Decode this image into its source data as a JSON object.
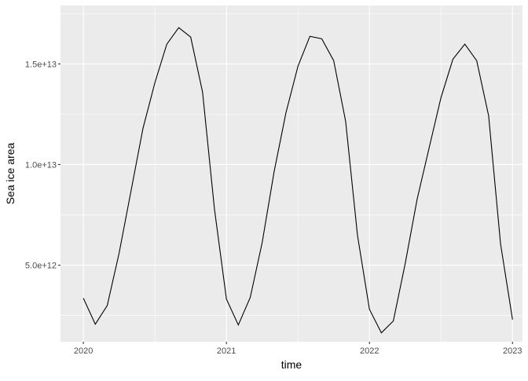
{
  "chart_data": {
    "type": "line",
    "title": "",
    "xlabel": "time",
    "ylabel": "Sea ice area",
    "x_ticks": [
      "2020",
      "2021",
      "2022",
      "2023"
    ],
    "y_ticks": [
      {
        "value": 5000000000000.0,
        "label": "5.0e+12"
      },
      {
        "value": 10000000000000.0,
        "label": "1.0e+13"
      },
      {
        "value": 15000000000000.0,
        "label": "1.5e+13"
      }
    ],
    "xlim": [
      2019.84,
      2023.07
    ],
    "ylim": [
      1200000000000.0,
      17900000000000.0
    ],
    "grid": true,
    "panel_background": "#EBEBEB",
    "line_color": "#000000",
    "x": [
      "2020-01",
      "2020-02",
      "2020-03",
      "2020-04",
      "2020-05",
      "2020-06",
      "2020-07",
      "2020-08",
      "2020-09",
      "2020-10",
      "2020-11",
      "2020-12",
      "2021-01",
      "2021-02",
      "2021-03",
      "2021-04",
      "2021-05",
      "2021-06",
      "2021-07",
      "2021-08",
      "2021-09",
      "2021-10",
      "2021-11",
      "2021-12",
      "2022-01",
      "2022-02",
      "2022-03",
      "2022-04",
      "2022-05",
      "2022-06",
      "2022-07",
      "2022-08",
      "2022-09",
      "2022-10",
      "2022-11",
      "2022-12",
      "2023-01"
    ],
    "values": [
      3360000000000.0,
      2070000000000.0,
      3000000000000.0,
      5600000000000.0,
      8700000000000.0,
      11800000000000.0,
      14060000000000.0,
      15980000000000.0,
      16800000000000.0,
      16330000000000.0,
      13600000000000.0,
      7770000000000.0,
      3320000000000.0,
      2030000000000.0,
      3400000000000.0,
      6130000000000.0,
      9650000000000.0,
      12580000000000.0,
      14880000000000.0,
      16370000000000.0,
      16250000000000.0,
      15160000000000.0,
      12150000000000.0,
      6480000000000.0,
      2810000000000.0,
      1640000000000.0,
      2230000000000.0,
      5080000000000.0,
      8280000000000.0,
      10820000000000.0,
      13320000000000.0,
      15230000000000.0,
      15980000000000.0,
      15160000000000.0,
      12420000000000.0,
      6050000000000.0,
      2300000000000.0
    ]
  }
}
